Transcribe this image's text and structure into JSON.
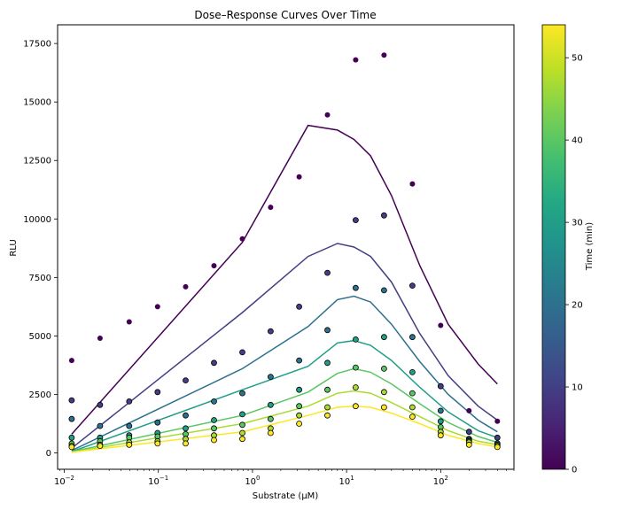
{
  "chart_data": {
    "type": "scatter",
    "title": "Dose–Response Curves Over Time",
    "xlabel": "Substrate (μM)",
    "ylabel": "RLU",
    "xscale": "log",
    "xlim": [
      0.0085,
      600
    ],
    "ylim": [
      -700,
      18300
    ],
    "grid": false,
    "x_ticks": [
      {
        "value": 0.01,
        "base": "10",
        "exp": "−2"
      },
      {
        "value": 0.1,
        "base": "10",
        "exp": "−1"
      },
      {
        "value": 1,
        "base": "10",
        "exp": "0"
      },
      {
        "value": 10,
        "base": "10",
        "exp": "1"
      },
      {
        "value": 100,
        "base": "10",
        "exp": "2"
      }
    ],
    "y_ticks": [
      0,
      2500,
      5000,
      7500,
      10000,
      12500,
      15000,
      17500
    ],
    "colorbar": {
      "label": "Time (min)",
      "colormap": "viridis",
      "range": [
        0,
        54
      ],
      "ticks": [
        0,
        10,
        20,
        30,
        40,
        50
      ]
    },
    "x": [
      0.012,
      0.024,
      0.049,
      0.098,
      0.195,
      0.39,
      0.78,
      1.56,
      3.13,
      6.25,
      12.5,
      25,
      50,
      100,
      200,
      400
    ],
    "series": [
      {
        "time": 0,
        "points": [
          3950,
          4900,
          5600,
          6250,
          7100,
          8000,
          9150,
          10500,
          11800,
          14450,
          16800,
          17000,
          11500,
          5450,
          1800,
          1350
        ],
        "fit_x": [
          0.012,
          0.78,
          3.9,
          8,
          12,
          18,
          30,
          60,
          120,
          250,
          400
        ],
        "fit_y": [
          800,
          9000,
          14000,
          13800,
          13400,
          12700,
          11000,
          8000,
          5500,
          3800,
          2950
        ]
      },
      {
        "time": 10,
        "points": [
          2250,
          2050,
          2200,
          2600,
          3100,
          3850,
          4300,
          5200,
          6250,
          7700,
          9950,
          10150,
          7150,
          2850,
          900,
          650
        ],
        "fit_x": [
          0.012,
          0.78,
          3.9,
          8,
          12,
          18,
          30,
          60,
          120,
          250,
          400
        ],
        "fit_y": [
          200,
          6000,
          8400,
          8950,
          8800,
          8400,
          7300,
          5100,
          3300,
          2000,
          1400
        ]
      },
      {
        "time": 20,
        "points": [
          1450,
          1150,
          1150,
          1300,
          1600,
          2200,
          2550,
          3250,
          3950,
          5250,
          7050,
          6950,
          4950,
          1800,
          600,
          400
        ],
        "fit_x": [
          0.012,
          0.78,
          3.9,
          8,
          12,
          18,
          30,
          60,
          120,
          250,
          400
        ],
        "fit_y": [
          100,
          3600,
          5400,
          6550,
          6700,
          6450,
          5500,
          3900,
          2500,
          1400,
          900
        ]
      },
      {
        "time": 30,
        "points": [
          650,
          650,
          750,
          850,
          1050,
          1400,
          1650,
          2050,
          2700,
          3850,
          4850,
          4950,
          3450,
          1350,
          550,
          400
        ],
        "fit_x": [
          0.012,
          0.78,
          3.9,
          8,
          12,
          18,
          30,
          60,
          120,
          250,
          400
        ],
        "fit_y": [
          50,
          2700,
          3700,
          4700,
          4800,
          4600,
          3950,
          2800,
          1750,
          950,
          650
        ]
      },
      {
        "time": 40,
        "points": [
          400,
          500,
          650,
          700,
          800,
          1050,
          1200,
          1450,
          2000,
          2700,
          3650,
          3600,
          2550,
          1100,
          500,
          350
        ],
        "fit_x": [
          0.012,
          0.78,
          3.9,
          8,
          12,
          18,
          30,
          60,
          120,
          250,
          400
        ],
        "fit_y": [
          50,
          1600,
          2600,
          3400,
          3600,
          3450,
          2950,
          2100,
          1300,
          700,
          450
        ]
      },
      {
        "time": 47,
        "points": [
          300,
          350,
          450,
          500,
          600,
          750,
          850,
          1050,
          1600,
          1950,
          2800,
          2600,
          1950,
          900,
          450,
          300
        ],
        "fit_x": [
          0.012,
          0.78,
          3.9,
          8,
          12,
          18,
          30,
          60,
          120,
          250,
          400
        ],
        "fit_y": [
          30,
          1250,
          2000,
          2550,
          2650,
          2550,
          2150,
          1550,
          950,
          500,
          350
        ]
      },
      {
        "time": 54,
        "points": [
          250,
          300,
          350,
          400,
          400,
          550,
          600,
          850,
          1250,
          1600,
          2000,
          1950,
          1550,
          750,
          350,
          250
        ],
        "fit_x": [
          0.012,
          0.78,
          3.9,
          8,
          12,
          18,
          30,
          60,
          120,
          250,
          400
        ],
        "fit_y": [
          30,
          900,
          1600,
          1950,
          2000,
          1950,
          1700,
          1250,
          750,
          400,
          250
        ]
      }
    ]
  }
}
